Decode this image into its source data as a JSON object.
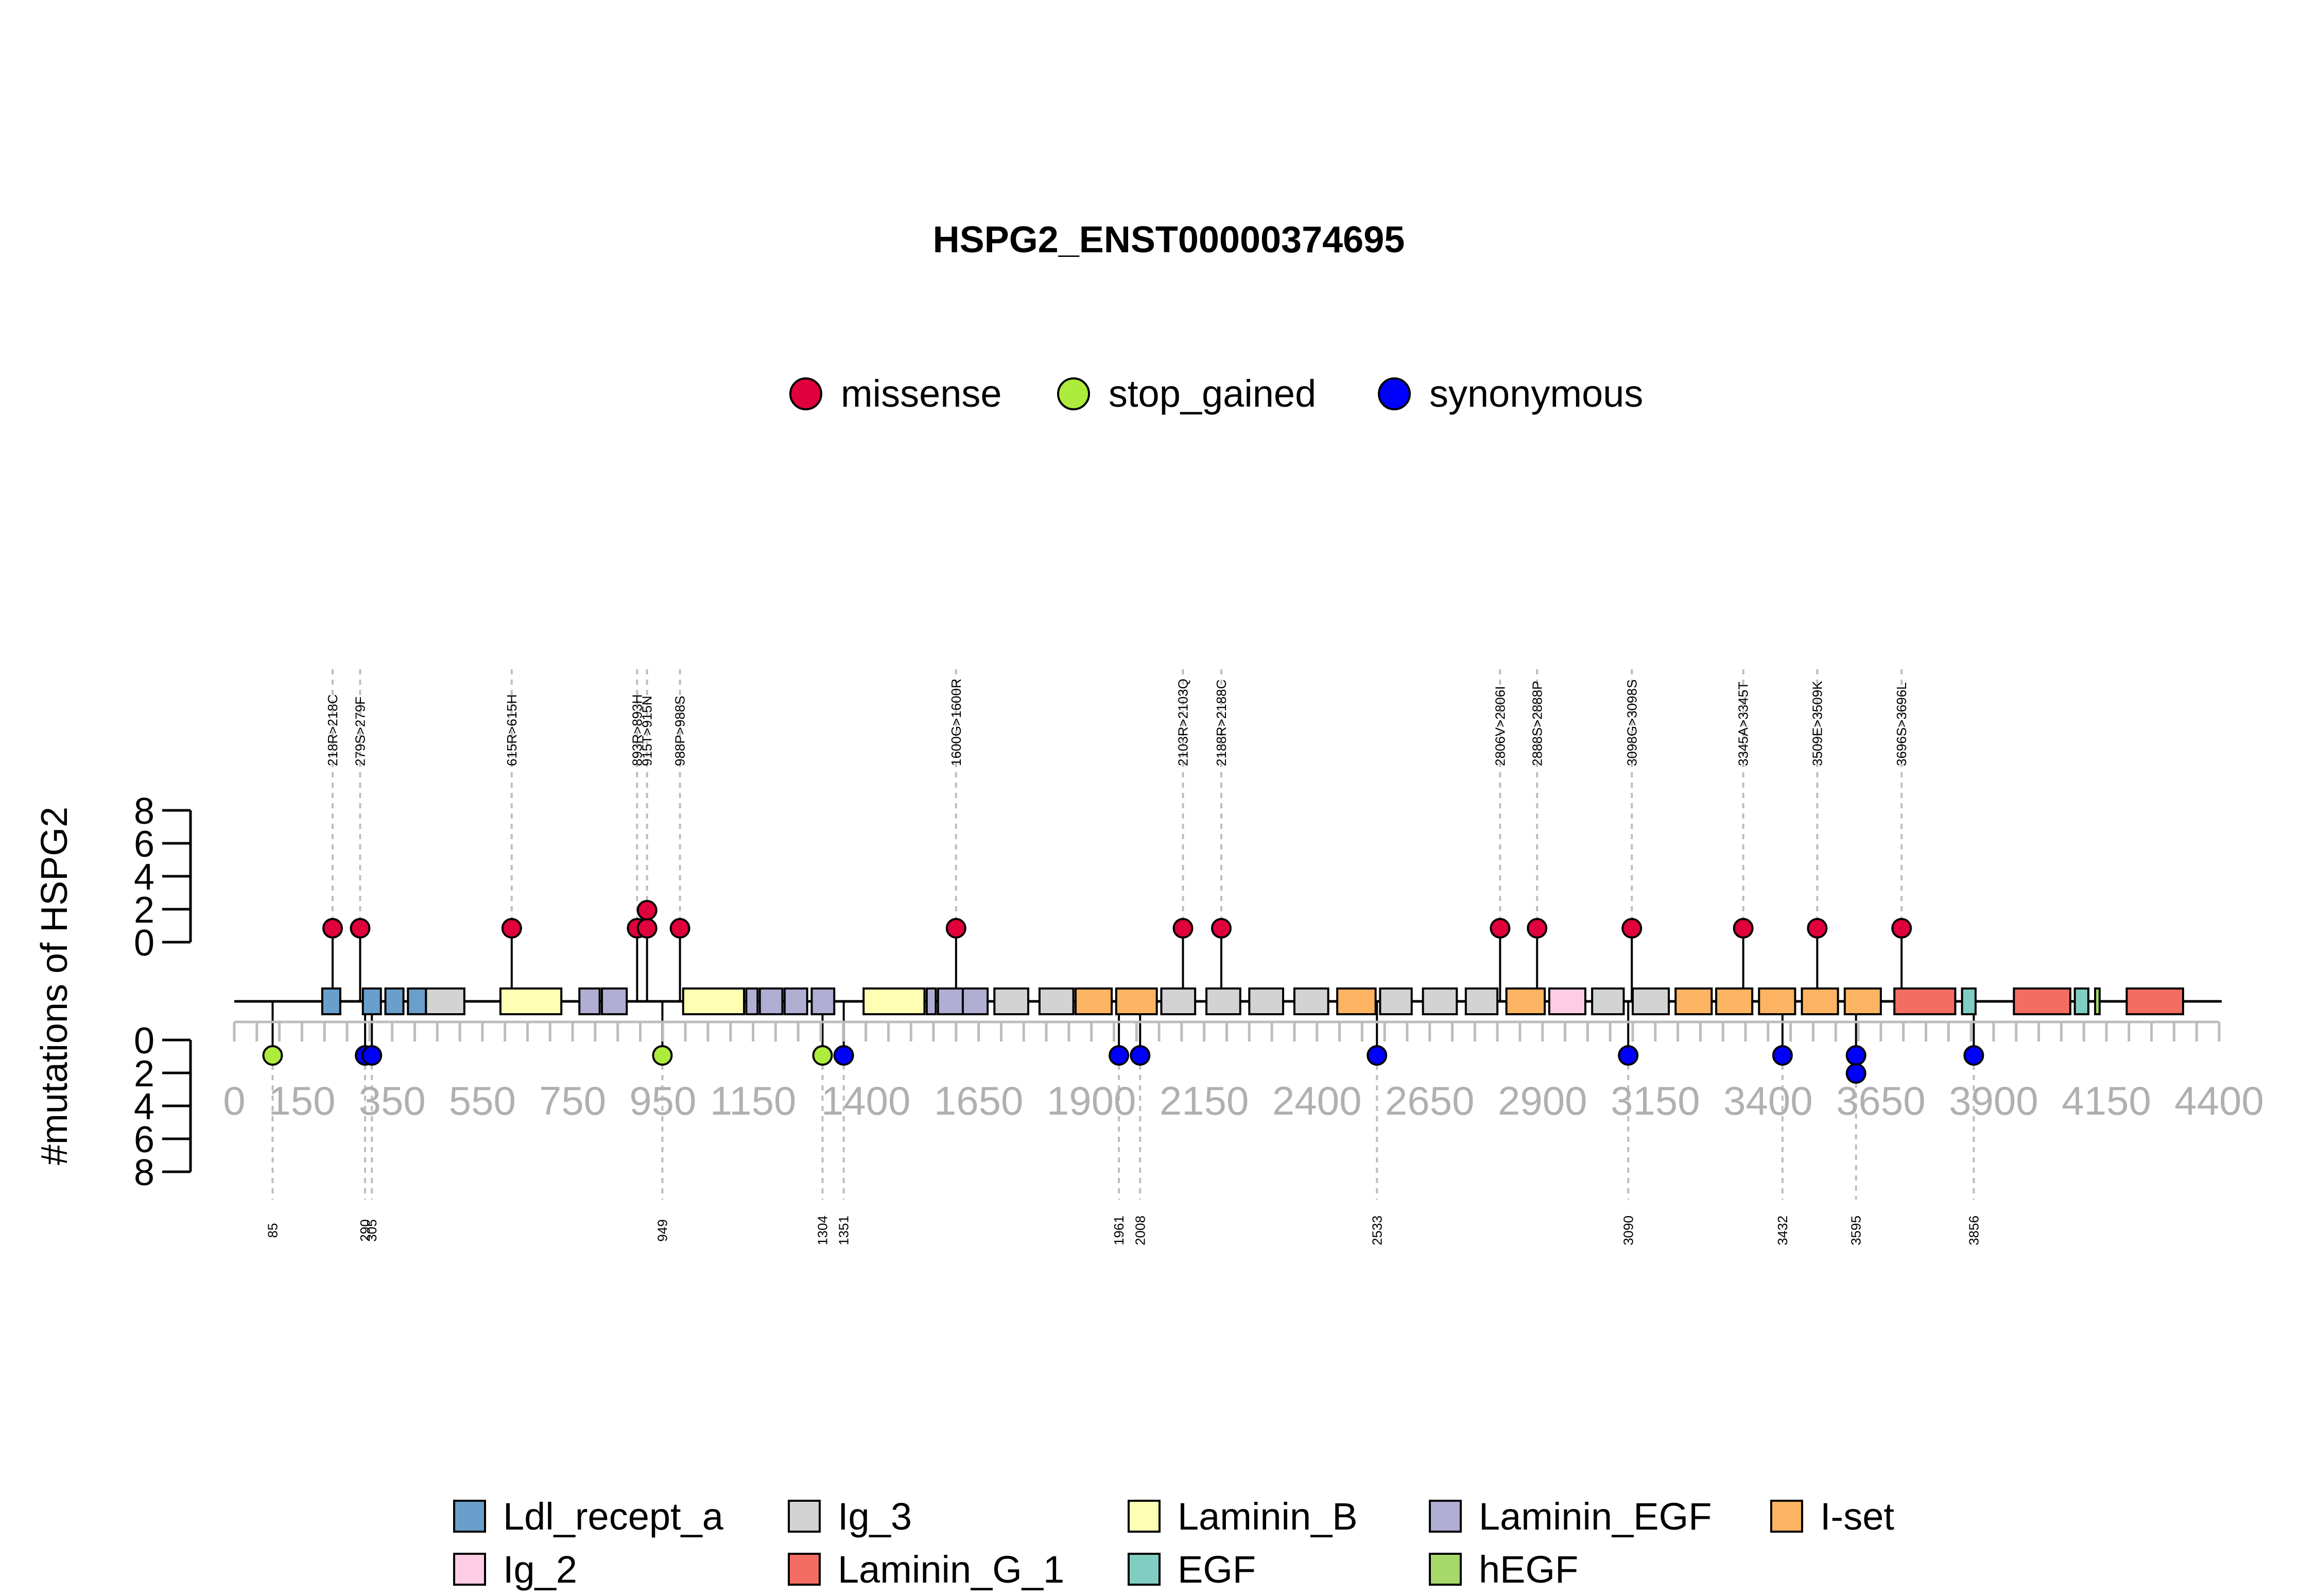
{
  "chart_data": {
    "type": "lollipop",
    "title": "HSPG2_ENST00000374695",
    "ylabel": "#mutations of HSPG2",
    "protein_length": 4391,
    "x_ticks": [
      0,
      150,
      350,
      550,
      750,
      950,
      1150,
      1400,
      1650,
      1900,
      2150,
      2400,
      2650,
      2900,
      3150,
      3400,
      3650,
      3900,
      4150,
      4400
    ],
    "y_ticks_top": [
      "0",
      "2",
      "4",
      "6",
      "8"
    ],
    "y_ticks_bottom": [
      "0",
      "2",
      "4",
      "6",
      "8"
    ],
    "ylim": [
      0,
      8
    ],
    "mutation_legend": [
      {
        "name": "missense",
        "color": "#E0003C"
      },
      {
        "name": "stop_gained",
        "color": "#ADEB3C"
      },
      {
        "name": "synonymous",
        "color": "#0000FF"
      }
    ],
    "domain_legend": [
      {
        "name": "Ldl_recept_a",
        "color": "#6A9FCB"
      },
      {
        "name": "Ig_3",
        "color": "#D3D3D3"
      },
      {
        "name": "Laminin_B",
        "color": "#FFFFB3"
      },
      {
        "name": "Laminin_EGF",
        "color": "#B1AED4"
      },
      {
        "name": "I-set",
        "color": "#FDB462"
      },
      {
        "name": "Ig_2",
        "color": "#FCCDE5"
      },
      {
        "name": "Laminin_G_1",
        "color": "#F46D63"
      },
      {
        "name": "EGF",
        "color": "#80CDC1"
      },
      {
        "name": "hEGF",
        "color": "#A6D96A"
      }
    ],
    "domains": [
      {
        "name": "Ldl_recept_a",
        "start": 195,
        "end": 235
      },
      {
        "name": "Ldl_recept_a",
        "start": 285,
        "end": 325
      },
      {
        "name": "Ldl_recept_a",
        "start": 335,
        "end": 375
      },
      {
        "name": "Ldl_recept_a",
        "start": 385,
        "end": 425
      },
      {
        "name": "Ig_3",
        "start": 425,
        "end": 510
      },
      {
        "name": "Laminin_B",
        "start": 590,
        "end": 725
      },
      {
        "name": "Laminin_EGF",
        "start": 765,
        "end": 810
      },
      {
        "name": "Laminin_EGF",
        "start": 815,
        "end": 870
      },
      {
        "name": "Laminin_B",
        "start": 995,
        "end": 1130
      },
      {
        "name": "Laminin_EGF",
        "start": 1135,
        "end": 1160
      },
      {
        "name": "Laminin_EGF",
        "start": 1165,
        "end": 1215
      },
      {
        "name": "Laminin_EGF",
        "start": 1220,
        "end": 1270
      },
      {
        "name": "Laminin_EGF",
        "start": 1280,
        "end": 1330
      },
      {
        "name": "Laminin_B",
        "start": 1395,
        "end": 1530
      },
      {
        "name": "Laminin_EGF",
        "start": 1535,
        "end": 1555
      },
      {
        "name": "Laminin_EGF",
        "start": 1560,
        "end": 1615
      },
      {
        "name": "Laminin_EGF",
        "start": 1615,
        "end": 1670
      },
      {
        "name": "Ig_3",
        "start": 1685,
        "end": 1760
      },
      {
        "name": "Ig_3",
        "start": 1785,
        "end": 1860
      },
      {
        "name": "I-set",
        "start": 1865,
        "end": 1945
      },
      {
        "name": "I-set",
        "start": 1955,
        "end": 2045
      },
      {
        "name": "Ig_3",
        "start": 2055,
        "end": 2130
      },
      {
        "name": "Ig_3",
        "start": 2155,
        "end": 2230
      },
      {
        "name": "Ig_3",
        "start": 2250,
        "end": 2325
      },
      {
        "name": "Ig_3",
        "start": 2350,
        "end": 2425
      },
      {
        "name": "I-set",
        "start": 2445,
        "end": 2530
      },
      {
        "name": "Ig_3",
        "start": 2540,
        "end": 2610
      },
      {
        "name": "Ig_3",
        "start": 2635,
        "end": 2710
      },
      {
        "name": "Ig_3",
        "start": 2730,
        "end": 2800
      },
      {
        "name": "I-set",
        "start": 2820,
        "end": 2905
      },
      {
        "name": "Ig_2",
        "start": 2915,
        "end": 2995
      },
      {
        "name": "Ig_3",
        "start": 3010,
        "end": 3080
      },
      {
        "name": "Ig_3",
        "start": 3100,
        "end": 3180
      },
      {
        "name": "I-set",
        "start": 3195,
        "end": 3275
      },
      {
        "name": "I-set",
        "start": 3285,
        "end": 3365
      },
      {
        "name": "I-set",
        "start": 3380,
        "end": 3460
      },
      {
        "name": "I-set",
        "start": 3475,
        "end": 3555
      },
      {
        "name": "I-set",
        "start": 3570,
        "end": 3650
      },
      {
        "name": "Laminin_G_1",
        "start": 3680,
        "end": 3815
      },
      {
        "name": "EGF",
        "start": 3830,
        "end": 3860
      },
      {
        "name": "Laminin_G_1",
        "start": 3945,
        "end": 4070
      },
      {
        "name": "EGF",
        "start": 4080,
        "end": 4110
      },
      {
        "name": "hEGF",
        "start": 4125,
        "end": 4135
      },
      {
        "name": "Laminin_G_1",
        "start": 4195,
        "end": 4320
      }
    ],
    "top_mutations": [
      {
        "pos": 218,
        "label": "218R>218C",
        "type": "missense",
        "count": 1
      },
      {
        "pos": 279,
        "label": "279S>279F",
        "type": "missense",
        "count": 1
      },
      {
        "pos": 615,
        "label": "615R>615H",
        "type": "missense",
        "count": 1
      },
      {
        "pos": 893,
        "label": "893R>893H",
        "type": "missense",
        "count": 1
      },
      {
        "pos": 915,
        "label": "915T>915N",
        "type": "missense",
        "count": 2
      },
      {
        "pos": 988,
        "label": "988P>988S",
        "type": "missense",
        "count": 1
      },
      {
        "pos": 1600,
        "label": "1600G>1600R",
        "type": "missense",
        "count": 1
      },
      {
        "pos": 2103,
        "label": "2103R>2103Q",
        "type": "missense",
        "count": 1
      },
      {
        "pos": 2188,
        "label": "2188R>2188C",
        "type": "missense",
        "count": 1
      },
      {
        "pos": 2806,
        "label": "2806V>2806I",
        "type": "missense",
        "count": 1
      },
      {
        "pos": 2888,
        "label": "2888S>2888P",
        "type": "missense",
        "count": 1
      },
      {
        "pos": 3098,
        "label": "3098G>3098S",
        "type": "missense",
        "count": 1
      },
      {
        "pos": 3345,
        "label": "3345A>3345T",
        "type": "missense",
        "count": 1
      },
      {
        "pos": 3509,
        "label": "3509E>3509K",
        "type": "missense",
        "count": 1
      },
      {
        "pos": 3696,
        "label": "3696S>3696L",
        "type": "missense",
        "count": 1
      }
    ],
    "bottom_mutations": [
      {
        "pos": 85,
        "label": "85",
        "type": "stop_gained",
        "count": 1
      },
      {
        "pos": 290,
        "label": "290",
        "type": "synonymous",
        "count": 1
      },
      {
        "pos": 305,
        "label": "305",
        "type": "synonymous",
        "count": 1
      },
      {
        "pos": 949,
        "label": "949",
        "type": "stop_gained",
        "count": 1
      },
      {
        "pos": 1304,
        "label": "1304",
        "type": "stop_gained",
        "count": 1
      },
      {
        "pos": 1351,
        "label": "1351",
        "type": "synonymous",
        "count": 1
      },
      {
        "pos": 1961,
        "label": "1961",
        "type": "synonymous",
        "count": 1
      },
      {
        "pos": 2008,
        "label": "2008",
        "type": "synonymous",
        "count": 1
      },
      {
        "pos": 2533,
        "label": "2533",
        "type": "synonymous",
        "count": 1
      },
      {
        "pos": 3090,
        "label": "3090",
        "type": "synonymous",
        "count": 1
      },
      {
        "pos": 3432,
        "label": "3432",
        "type": "synonymous",
        "count": 1
      },
      {
        "pos": 3595,
        "label": "3595",
        "type": "synonymous",
        "count": 2
      },
      {
        "pos": 3856,
        "label": "3856",
        "type": "synonymous",
        "count": 1
      }
    ]
  }
}
